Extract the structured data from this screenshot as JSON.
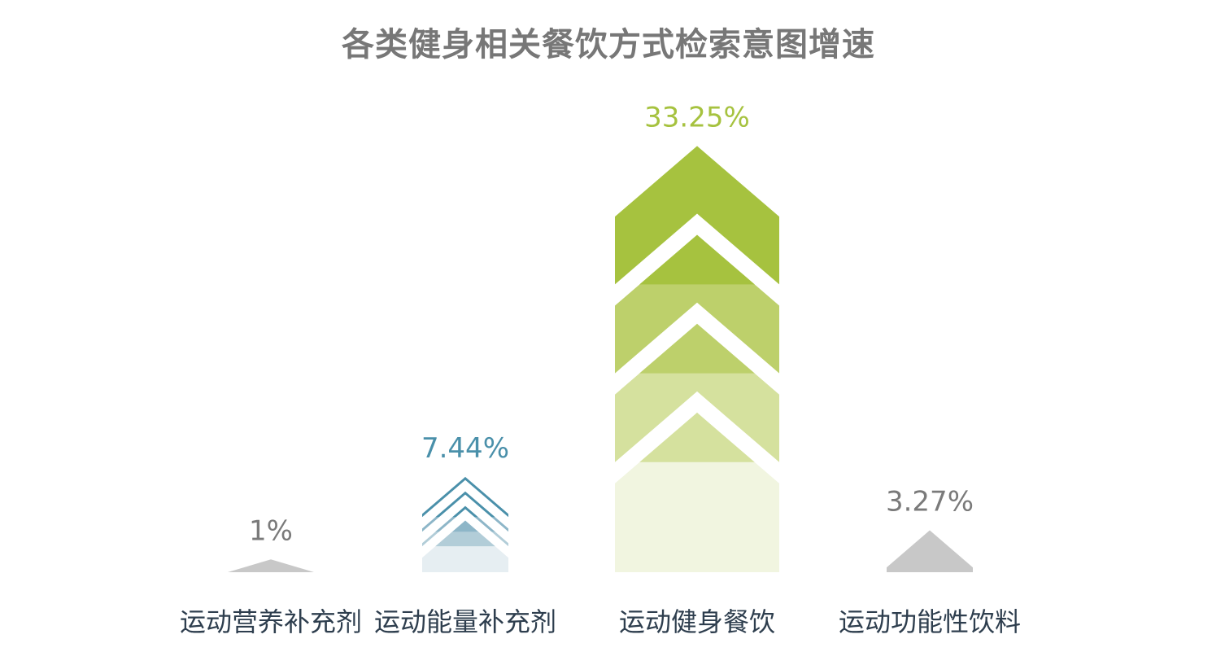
{
  "chart_data": {
    "type": "bar",
    "title": "各类健身相关餐饮方式检索意图增速",
    "categories": [
      "运动营养补充剂",
      "运动能量补充剂",
      "运动健身餐饮",
      "运动功能性饮料"
    ],
    "values": [
      1,
      7.44,
      33.25,
      3.27
    ],
    "value_labels": [
      "1%",
      "7.44%",
      "33.25%",
      "3.27%"
    ],
    "unit": "%",
    "ylim": [
      0,
      37.5
    ],
    "grid": false,
    "legend": "none",
    "colors": {
      "bars": [
        "#c8c8c8",
        "#4a90aa",
        "#a6c23f",
        "#c8c8c8"
      ],
      "value_labels": [
        "#7a7a7a",
        "#4a90aa",
        "#a6c23f",
        "#7a7a7a"
      ],
      "layer_shades_blue": [
        "#4a90aa",
        "#8db6c8",
        "#b2cdd8",
        "#e6eef2"
      ],
      "layer_shades_green": [
        "#a6c23f",
        "#bdd06b",
        "#d5e19e",
        "#f1f5e0"
      ],
      "category_text": "#2e3e4e",
      "title_text": "#777777"
    }
  }
}
